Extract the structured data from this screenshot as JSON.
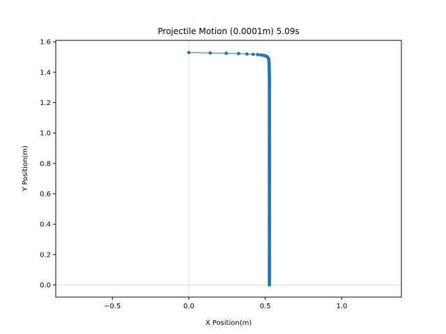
{
  "chart_data": {
    "type": "line",
    "title": "Projectile Motion (0.0001m) 5.09s",
    "xlabel": "X Position(m)",
    "ylabel": "Y Position(m)",
    "xlim": [
      -0.87,
      1.39
    ],
    "ylim": [
      -0.08,
      1.61
    ],
    "x_ticks": [
      -0.5,
      0.0,
      0.5,
      1.0
    ],
    "x_tick_labels": [
      "−0.5",
      "0.0",
      "0.5",
      "1.0"
    ],
    "y_ticks": [
      0.0,
      0.2,
      0.4,
      0.6,
      0.8,
      1.0,
      1.2,
      1.4,
      1.6
    ],
    "y_tick_labels": [
      "0.0",
      "0.2",
      "0.4",
      "0.6",
      "0.8",
      "1.0",
      "1.2",
      "1.4",
      "1.6"
    ],
    "reference_lines": {
      "x": 0.0,
      "y": 0.0,
      "color": "#d9d9d9"
    },
    "grid": false,
    "legend": "none",
    "series": [
      {
        "color": "#1f77b4",
        "marker": "dot",
        "points": [
          [
            0.0,
            1.53
          ],
          [
            0.14,
            1.527
          ],
          [
            0.245,
            1.525
          ],
          [
            0.325,
            1.523
          ],
          [
            0.38,
            1.52
          ],
          [
            0.42,
            1.518
          ],
          [
            0.45,
            1.516
          ],
          [
            0.47,
            1.514
          ],
          [
            0.485,
            1.512
          ],
          [
            0.497,
            1.509
          ],
          [
            0.506,
            1.506
          ],
          [
            0.512,
            1.502
          ],
          [
            0.517,
            1.497
          ],
          [
            0.521,
            1.49
          ],
          [
            0.523,
            1.48
          ],
          [
            0.525,
            1.46
          ],
          [
            0.526,
            1.42
          ],
          [
            0.527,
            1.36
          ],
          [
            0.527,
            1.28
          ],
          [
            0.527,
            1.18
          ],
          [
            0.527,
            1.06
          ],
          [
            0.527,
            0.92
          ],
          [
            0.527,
            0.78
          ],
          [
            0.527,
            0.64
          ],
          [
            0.527,
            0.5
          ],
          [
            0.527,
            0.36
          ],
          [
            0.527,
            0.22
          ],
          [
            0.527,
            0.1
          ],
          [
            0.527,
            0.0
          ]
        ]
      }
    ]
  }
}
